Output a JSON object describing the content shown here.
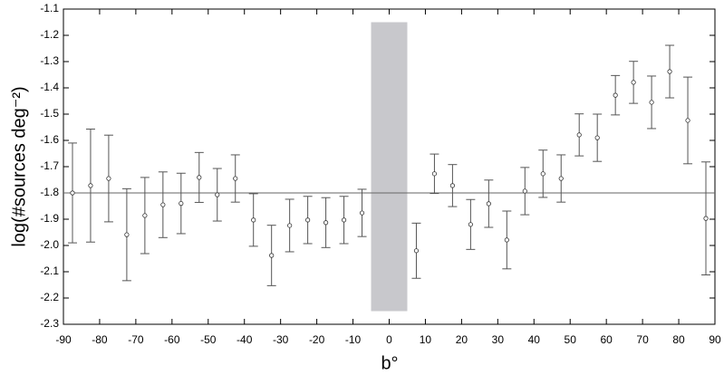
{
  "chart_data": {
    "type": "errorbar",
    "x_label": "b°",
    "y_label": "log(#sources deg⁻²)",
    "xlim": [
      -90,
      90
    ],
    "ylim": [
      -2.3,
      -1.1
    ],
    "xticks": [
      -90,
      -80,
      -70,
      -60,
      -50,
      -40,
      -30,
      -20,
      -10,
      0,
      10,
      20,
      30,
      40,
      50,
      60,
      70,
      80,
      90
    ],
    "yticks": [
      -1.1,
      -1.2,
      -1.3,
      -1.4,
      -1.5,
      -1.6,
      -1.7,
      -1.8,
      -1.9,
      {
        "value": -2.0,
        "label": "-2.0"
      },
      -2.1,
      -2.2,
      -2.3
    ],
    "reference_line": -1.8,
    "excluded_region": {
      "x": [
        -5,
        5
      ],
      "y": [
        -2.25,
        -1.15
      ],
      "color": "#c8c8cc"
    },
    "color": "#555555",
    "x": [
      -87.5,
      -82.5,
      -77.5,
      -72.5,
      -67.5,
      -62.5,
      -57.5,
      -52.5,
      -47.5,
      -42.5,
      -37.5,
      -32.5,
      -27.5,
      -22.5,
      -17.5,
      -12.5,
      -7.5,
      7.5,
      12.5,
      17.5,
      22.5,
      27.5,
      32.5,
      37.5,
      42.5,
      47.5,
      52.5,
      57.5,
      62.5,
      67.5,
      72.5,
      77.5,
      82.5,
      87.5
    ],
    "values": [
      -1.8,
      -1.772,
      -1.745,
      -1.959,
      -1.886,
      -1.845,
      -1.84,
      -1.741,
      -1.807,
      -1.745,
      -1.903,
      -2.038,
      -1.924,
      -1.903,
      -1.913,
      -1.903,
      -1.876,
      -2.02,
      -1.727,
      -1.772,
      -1.92,
      -1.841,
      -1.979,
      -1.793,
      -1.727,
      -1.745,
      -1.579,
      -1.59,
      -1.428,
      -1.379,
      -1.455,
      -1.338,
      -1.524,
      -1.897
    ],
    "errors": [
      0.19,
      0.215,
      0.165,
      0.175,
      0.145,
      0.125,
      0.115,
      0.095,
      0.1,
      0.09,
      0.1,
      0.115,
      0.1,
      0.09,
      0.095,
      0.09,
      0.09,
      0.105,
      0.075,
      0.08,
      0.095,
      0.09,
      0.11,
      0.09,
      0.09,
      0.09,
      0.08,
      0.09,
      0.075,
      0.08,
      0.1,
      0.1,
      0.165,
      0.215
    ]
  }
}
